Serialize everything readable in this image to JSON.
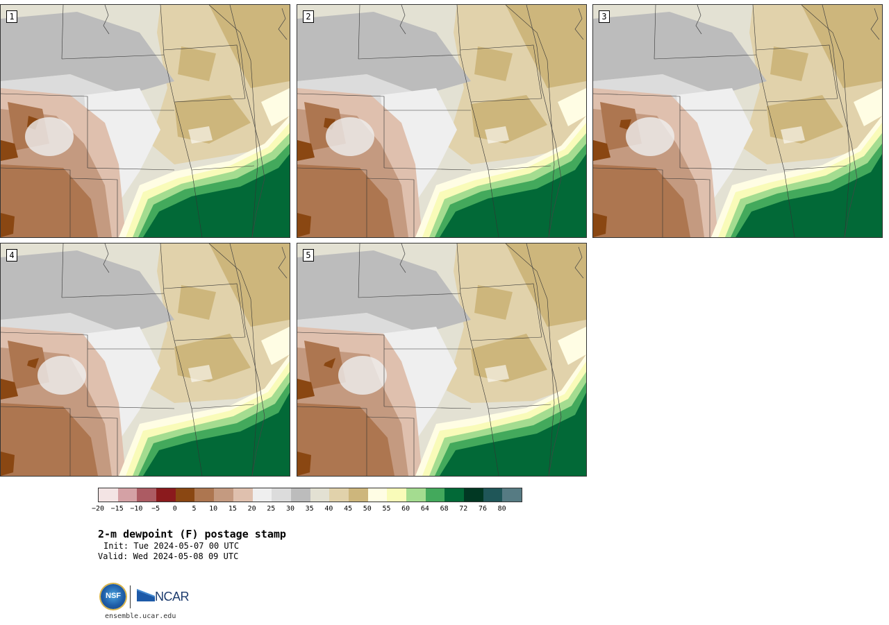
{
  "panels": [
    {
      "label": "1"
    },
    {
      "label": "2"
    },
    {
      "label": "3"
    },
    {
      "label": "4"
    },
    {
      "label": "5"
    }
  ],
  "colorbar": {
    "colors": [
      "#f3e4e4",
      "#d4a1a5",
      "#ac5b63",
      "#8b1a1d",
      "#8a4712",
      "#ad7650",
      "#c49a80",
      "#dfc0ae",
      "#efefef",
      "#dcdcdc",
      "#bcbcbc",
      "#e3e1d3",
      "#e1d2ab",
      "#cdb67c",
      "#fffde4",
      "#f9fbb9",
      "#a4dc90",
      "#43a95c",
      "#026937",
      "#013823",
      "#1f5658",
      "#567b83"
    ],
    "ticks": [
      "−20",
      "−15",
      "−10",
      "−5",
      "0",
      "5",
      "10",
      "15",
      "20",
      "25",
      "30",
      "35",
      "40",
      "45",
      "50",
      "55",
      "60",
      "64",
      "68",
      "72",
      "76",
      "80"
    ]
  },
  "title": "2-m dewpoint (F) postage stamp",
  "init": "Init: Tue 2024-05-07 00 UTC",
  "valid": "Valid: Wed 2024-05-08 09 UTC",
  "logos": {
    "nsf": "NSF",
    "ncar": "NCAR"
  },
  "site": "ensemble.ucar.edu"
}
